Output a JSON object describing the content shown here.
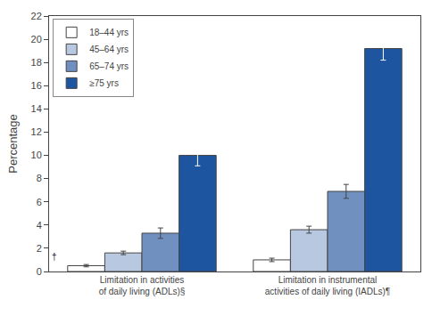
{
  "chart_data": {
    "type": "bar",
    "ylabel": "Percentage",
    "categories": [
      "Limitation in activities\nof daily living (ADLs)§",
      "Limitation in instrumental\nactivities of daily living (IADLs)¶"
    ],
    "series": [
      {
        "name": "18–44 yrs",
        "color": "#ffffff",
        "values": [
          0.5,
          1.0
        ],
        "errors": [
          0.1,
          0.15
        ]
      },
      {
        "name": "45–64 yrs",
        "color": "#b8c8e0",
        "values": [
          1.6,
          3.6
        ],
        "errors": [
          0.15,
          0.3
        ]
      },
      {
        "name": "65–74 yrs",
        "color": "#7090c0",
        "values": [
          3.3,
          6.9
        ],
        "errors": [
          0.45,
          0.6
        ]
      },
      {
        "name": "≥75 yrs",
        "color": "#1e55a0",
        "values": [
          10.0,
          19.2
        ],
        "errors": [
          0.9,
          1.0
        ]
      }
    ],
    "annotations": [
      "†"
    ],
    "ylim": [
      0,
      22
    ],
    "yticks": [
      0,
      2,
      4,
      6,
      8,
      10,
      12,
      14,
      16,
      18,
      20,
      22
    ],
    "grid": false,
    "legend": "upper left"
  }
}
